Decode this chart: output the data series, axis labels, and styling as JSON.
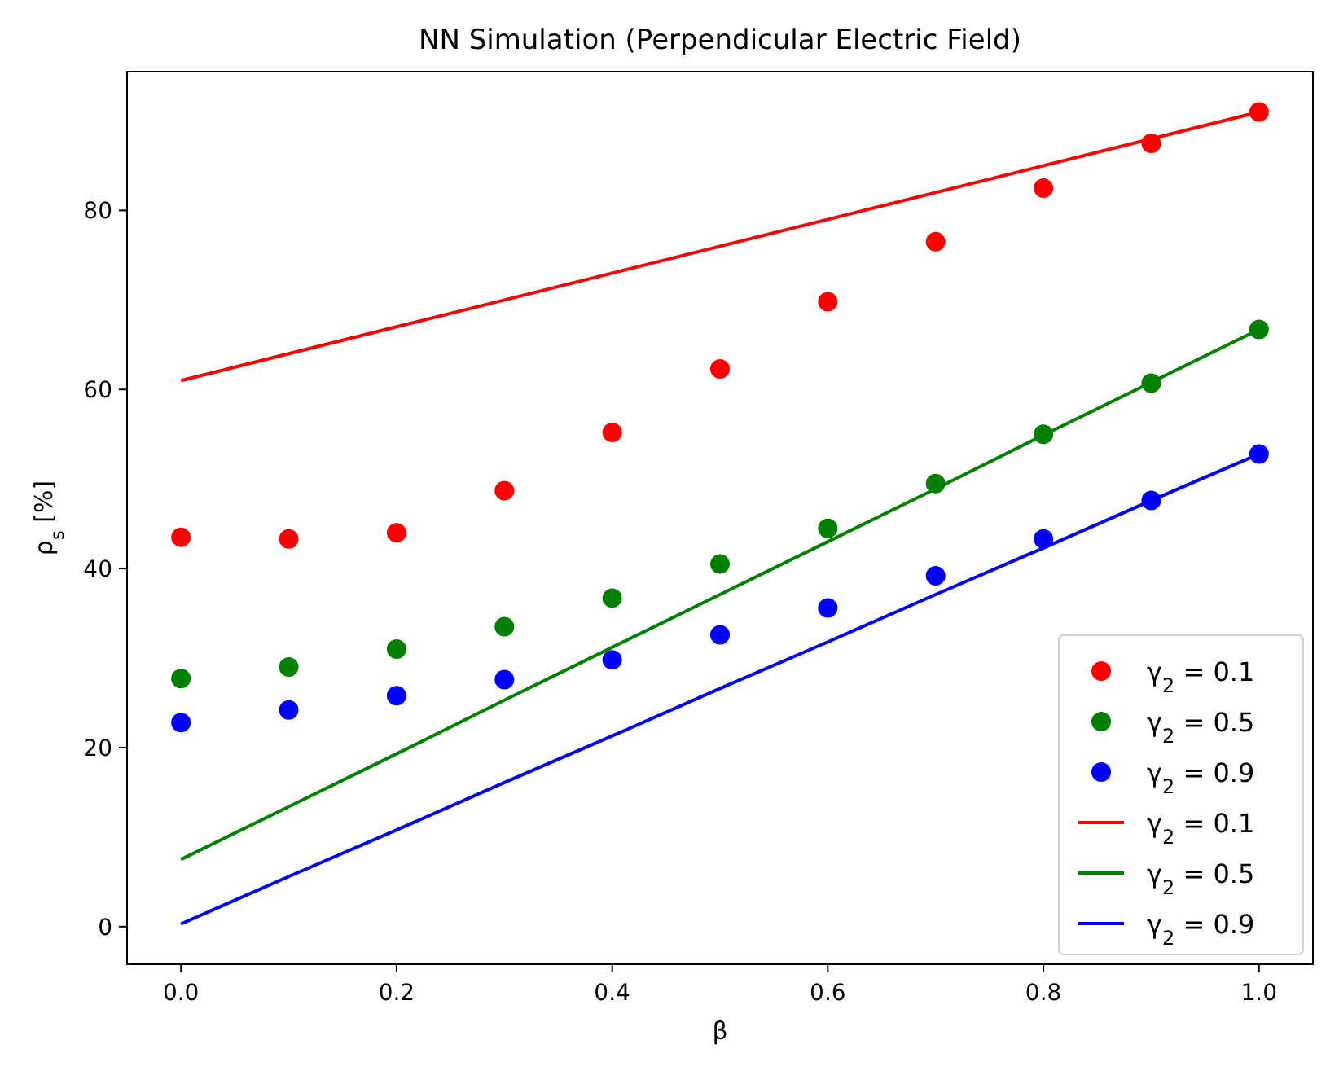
{
  "chart_data": {
    "type": "scatter",
    "title": "NN Simulation (Perpendicular Electric Field)",
    "xlabel": "β",
    "ylabel": "ρ$_{s}$ [%]",
    "x": [
      0,
      0.1,
      0.2,
      0.3,
      0.4,
      0.5,
      0.6,
      0.7,
      0.8,
      0.9,
      1.0
    ],
    "xlim": [
      -0.05,
      1.05
    ],
    "xticks": [
      {
        "value": 0,
        "label": "0.0"
      },
      {
        "value": 0.2,
        "label": "0.2"
      },
      {
        "value": 0.4,
        "label": "0.4"
      },
      {
        "value": 0.6,
        "label": "0.6"
      },
      {
        "value": 0.8,
        "label": "0.8"
      },
      {
        "value": 1,
        "label": "1.0"
      }
    ],
    "ylim": [
      -4.2,
      95.5
    ],
    "yticks": [
      0,
      20,
      40,
      60,
      80
    ],
    "grid": false,
    "legend": "bottom right",
    "series": [
      {
        "name": "γ$_{2}$ = 0.1",
        "marker": "circle",
        "color": "#ff0000",
        "values": [
          43.5,
          43.3,
          44,
          48.7,
          55.2,
          62.3,
          69.8,
          76.5,
          82.5,
          87.5,
          91
        ]
      },
      {
        "name": "γ$_{2}$ = 0.5",
        "marker": "circle",
        "color": "#008000",
        "values": [
          27.7,
          29,
          31,
          33.5,
          36.7,
          40.5,
          44.5,
          49.5,
          55,
          60.7,
          66.7
        ]
      },
      {
        "name": "γ$_{2}$ = 0.9",
        "marker": "circle",
        "color": "#0000ff",
        "values": [
          22.8,
          24.2,
          25.8,
          27.6,
          29.8,
          32.6,
          35.6,
          39.2,
          43.3,
          47.6,
          52.8
        ]
      },
      {
        "name": "γ$_{2}$ = 0.1",
        "type": "line",
        "marker": "none",
        "color": "#ff0000",
        "values": [
          61,
          64,
          67,
          70,
          73,
          76,
          79,
          82,
          85,
          88,
          91
        ]
      },
      {
        "name": "γ$_{2}$ = 0.5",
        "type": "line",
        "marker": "none",
        "color": "#008000",
        "values": [
          7.5,
          13.4,
          19.3,
          25.3,
          31.2,
          37.1,
          43.0,
          48.9,
          54.9,
          60.8,
          66.7
        ]
      },
      {
        "name": "γ$_{2}$ = 0.9",
        "type": "line",
        "marker": "none",
        "color": "#0000ff",
        "values": [
          0.3,
          5.6,
          10.8,
          16.1,
          21.3,
          26.6,
          31.8,
          37.1,
          42.3,
          47.6,
          52.8
        ]
      }
    ]
  }
}
